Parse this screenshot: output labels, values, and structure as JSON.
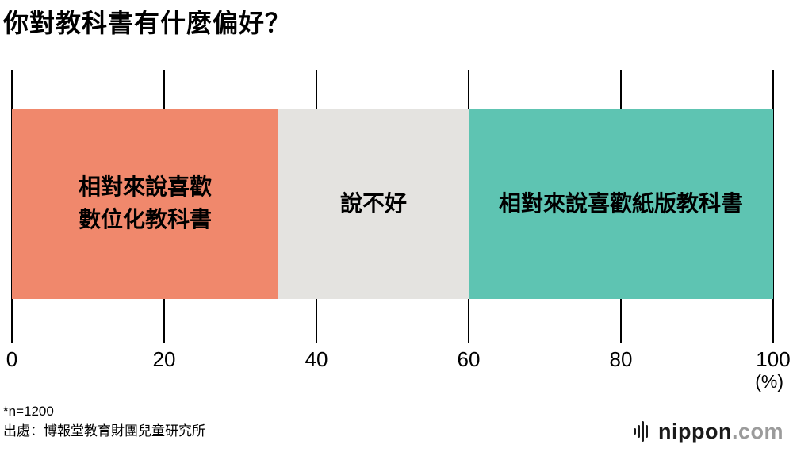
{
  "title": "你對教科書有什麼偏好？",
  "chart_data": {
    "type": "bar",
    "orientation": "horizontal-stacked",
    "title": "你對教科書有什麼偏好？",
    "categories": [
      "相對來說喜歡數位化教科書",
      "說不好",
      "相對來說喜歡紙版教科書"
    ],
    "values": [
      35,
      25,
      40
    ],
    "colors": [
      "#F0886C",
      "#E4E3E0",
      "#5EC4B2"
    ],
    "segment_label_lines": [
      [
        "相對來說喜歡",
        "數位化教科書"
      ],
      [
        "說不好"
      ],
      [
        "相對來說喜歡紙版教科書"
      ]
    ],
    "x_ticks": [
      0,
      20,
      40,
      60,
      80,
      100
    ],
    "xlim": [
      0,
      100
    ],
    "unit_label": "(%)",
    "grid": "vertical-ticks-only",
    "legend": "none"
  },
  "footnotes": {
    "sample": "*n=1200",
    "source": "出處：博報堂教育財團兒童研究所"
  },
  "logo": {
    "name": "nippon",
    "suffix": ".com"
  }
}
